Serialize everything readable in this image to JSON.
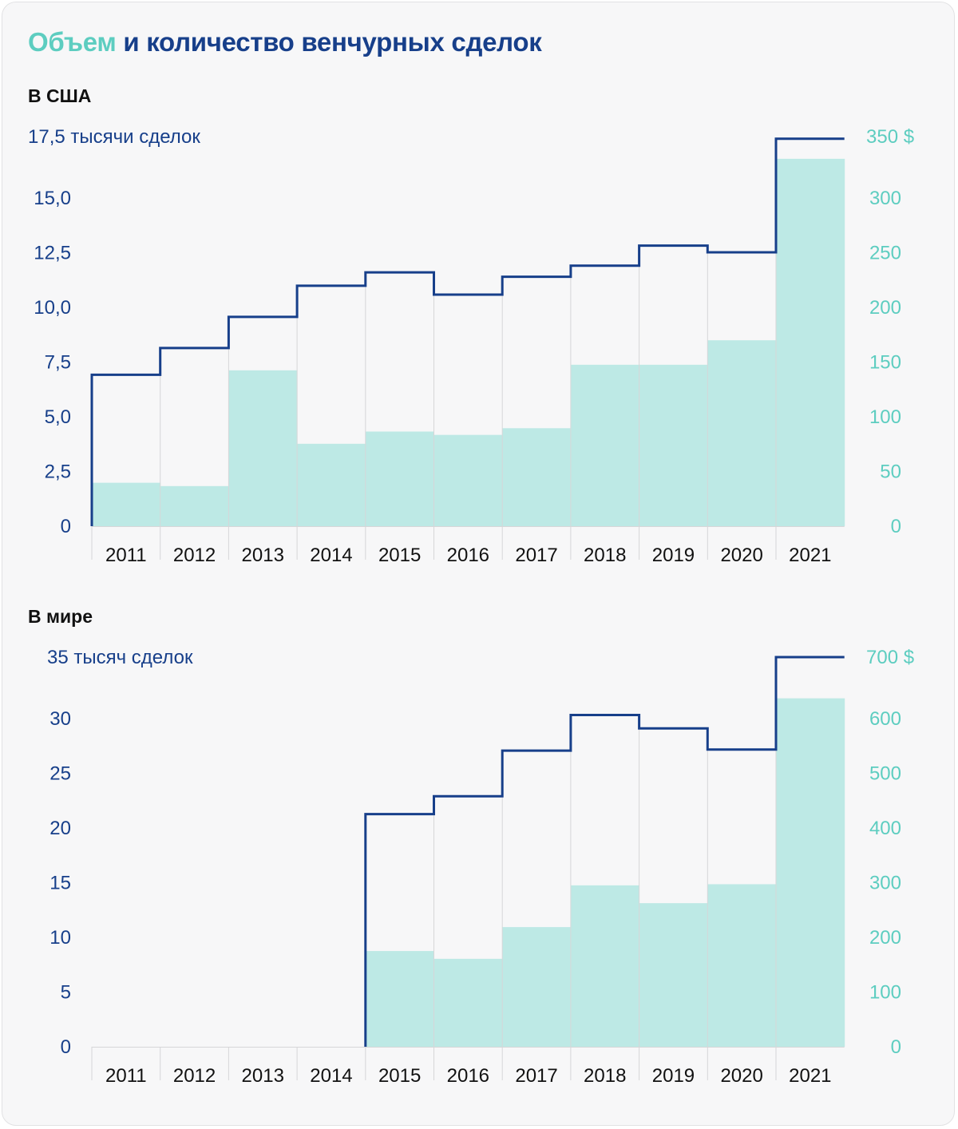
{
  "title": {
    "accent": "Объем",
    "rest": "и количество венчурных сделок"
  },
  "colors": {
    "deals": "#173f8a",
    "volume": "#5dcdc0",
    "volume_fill": "#bde9e5",
    "grid": "#d6d6d8",
    "background": "#f7f7f8"
  },
  "chart_data": [
    {
      "id": "usa",
      "type": "bar",
      "title": "В США",
      "categories": [
        "2011",
        "2012",
        "2013",
        "2014",
        "2015",
        "2016",
        "2017",
        "2018",
        "2019",
        "2020",
        "2021"
      ],
      "series": [
        {
          "name": "Объем сделок",
          "axis": "right",
          "render": "bar",
          "values": [
            39,
            36,
            140,
            74,
            85,
            82,
            88,
            145,
            145,
            167,
            330
          ]
        },
        {
          "name": "Количество сделок",
          "axis": "left",
          "render": "step-line",
          "values": [
            6.8,
            8.0,
            9.4,
            10.8,
            11.4,
            10.4,
            11.2,
            11.7,
            12.6,
            12.3,
            17.4
          ]
        }
      ],
      "left_axis": {
        "label": "17,5 тысячи сделок",
        "ticks": [
          "0",
          "2,5",
          "5,0",
          "7,5",
          "10,0",
          "12,5",
          "15,0"
        ],
        "ylim": [
          0,
          17.5
        ]
      },
      "right_axis": {
        "label": "350 $",
        "ticks": [
          "0",
          "50",
          "100",
          "150",
          "200",
          "250",
          "300"
        ],
        "ylim": [
          0,
          350
        ]
      }
    },
    {
      "id": "world",
      "type": "bar",
      "title": "В мире",
      "categories": [
        "2011",
        "2012",
        "2013",
        "2014",
        "2015",
        "2016",
        "2017",
        "2018",
        "2019",
        "2020",
        "2021"
      ],
      "series": [
        {
          "name": "Объем сделок",
          "axis": "right",
          "render": "bar",
          "values": [
            null,
            null,
            null,
            null,
            172,
            158,
            215,
            290,
            258,
            292,
            626
          ]
        },
        {
          "name": "Количество сделок",
          "axis": "left",
          "render": "step-line",
          "values": [
            null,
            null,
            null,
            null,
            20.9,
            22.5,
            26.6,
            29.8,
            28.6,
            26.7,
            35.0
          ]
        }
      ],
      "left_axis": {
        "label": "35 тысяч сделок",
        "ticks": [
          "0",
          "5",
          "10",
          "15",
          "20",
          "25",
          "30"
        ],
        "ylim": [
          0,
          35
        ]
      },
      "right_axis": {
        "label": "700 $",
        "ticks": [
          "0",
          "100",
          "200",
          "300",
          "400",
          "500",
          "600"
        ],
        "ylim": [
          0,
          700
        ]
      }
    }
  ]
}
